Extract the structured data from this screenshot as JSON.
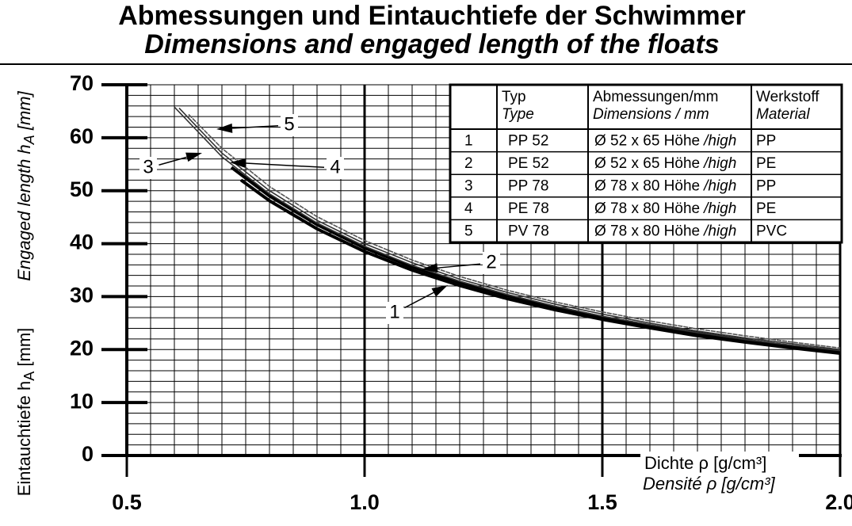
{
  "chart_data": {
    "type": "line",
    "title": "Abmessungen und Eintauchtiefe der Schwimmer",
    "subtitle": "Dimensions and engaged length of the floats",
    "ylabel": [
      {
        "text": "Eintauchtiefe h",
        "sub": "A",
        "tail": " [mm]"
      },
      {
        "text": "Engaged length h",
        "sub": "A",
        "tail": " [mm]"
      }
    ],
    "xlabel": [
      "Dichte ρ [g/cm³]",
      "Densité ρ [g/cm³]"
    ],
    "xlim": [
      0.5,
      2.0
    ],
    "ylim": [
      0,
      70
    ],
    "xticks": [
      0.5,
      {
        "value": 1,
        "label": "1.0"
      },
      1.5,
      {
        "value": 2,
        "label": "2.0"
      }
    ],
    "yticks": [
      0,
      10,
      20,
      30,
      40,
      50,
      60,
      70
    ],
    "minor_xticks": [
      0.5,
      0.55,
      0.6,
      0.65,
      0.7,
      0.75,
      0.8,
      0.85,
      0.9,
      0.95,
      1,
      1.05,
      1.1,
      1.15,
      1.2,
      1.25,
      1.3,
      1.35,
      1.4,
      1.45,
      1.5,
      1.55,
      1.6,
      1.65,
      1.7,
      1.75,
      1.8,
      1.85,
      1.9,
      1.95,
      2
    ],
    "minor_yticks": [
      0,
      2,
      4,
      6,
      8,
      10,
      12,
      14,
      16,
      18,
      20,
      22,
      24,
      26,
      28,
      30,
      32,
      34,
      36,
      38,
      40,
      42,
      44,
      46,
      48,
      50,
      52,
      54,
      56,
      58,
      60,
      62,
      64,
      66,
      68,
      70
    ],
    "grid": true,
    "series": [
      {
        "name": "1",
        "color": "#000000",
        "x": [
          0.74,
          0.8,
          0.9,
          1.0,
          1.1,
          1.2,
          1.3,
          1.4,
          1.5,
          1.6,
          1.7,
          1.8,
          1.9,
          2.0
        ],
        "values": [
          52.0,
          48.1,
          42.8,
          38.5,
          35.0,
          32.1,
          29.6,
          27.5,
          25.7,
          24.1,
          22.6,
          21.4,
          20.3,
          19.3
        ]
      },
      {
        "name": "2",
        "color": "#000000",
        "x": [
          0.72,
          0.8,
          0.9,
          1.0,
          1.1,
          1.2,
          1.3,
          1.4,
          1.5,
          1.6,
          1.7,
          1.8,
          1.9,
          2.0
        ],
        "values": [
          54.4,
          49.0,
          43.6,
          39.2,
          35.6,
          32.7,
          30.2,
          28.0,
          26.1,
          24.5,
          23.1,
          21.8,
          20.6,
          19.6
        ]
      },
      {
        "name": "3",
        "color": "#333333",
        "x": [
          0.6,
          0.7,
          0.8,
          0.9,
          1.0,
          1.1,
          1.2,
          1.3,
          1.4,
          1.5,
          1.6,
          1.7,
          1.8,
          1.9,
          2.0
        ],
        "values": [
          65.8,
          56.4,
          49.4,
          43.9,
          39.5,
          35.9,
          32.9,
          30.4,
          28.2,
          26.3,
          24.7,
          23.2,
          21.9,
          20.8,
          19.8
        ]
      },
      {
        "name": "4",
        "color": "#333333",
        "x": [
          0.61,
          0.7,
          0.8,
          0.9,
          1.0,
          1.1,
          1.2,
          1.3,
          1.4,
          1.5,
          1.6,
          1.7,
          1.8,
          1.9,
          2.0
        ],
        "values": [
          65.6,
          57.1,
          50.0,
          44.4,
          40.0,
          36.4,
          33.3,
          30.8,
          28.6,
          26.7,
          25.0,
          23.5,
          22.2,
          21.1,
          20.0
        ]
      },
      {
        "name": "5",
        "color": "#555555",
        "x": [
          0.63,
          0.7,
          0.8,
          0.9,
          1.0,
          1.1,
          1.2,
          1.3,
          1.4,
          1.5,
          1.6,
          1.7,
          1.8,
          1.9,
          2.0
        ],
        "values": [
          64.4,
          58.0,
          50.8,
          45.1,
          40.6,
          36.9,
          33.8,
          31.2,
          29.0,
          27.1,
          25.4,
          23.9,
          22.6,
          21.4,
          20.3
        ]
      }
    ],
    "table": {
      "header": [
        [
          "Typ",
          "Type"
        ],
        [
          "Abmessungen/mm",
          "Dimensions / mm"
        ],
        [
          "Werkstoff",
          "Material"
        ]
      ],
      "rows": [
        {
          "no": "1",
          "type": "PP 52",
          "dim": "Ø 52 x 65 Höhe",
          "dim_en": "/high",
          "material": "PP"
        },
        {
          "no": "2",
          "type": "PE 52",
          "dim": "Ø 52 x 65 Höhe",
          "dim_en": "/high",
          "material": "PE"
        },
        {
          "no": "3",
          "type": "PP 78",
          "dim": "Ø 78 x 80 Höhe",
          "dim_en": "/high",
          "material": "PP"
        },
        {
          "no": "4",
          "type": "PE 78",
          "dim": "Ø 78 x 80 Höhe",
          "dim_en": "/high",
          "material": "PE"
        },
        {
          "no": "5",
          "type": "PV 78",
          "dim": "Ø 78 x 80 Höhe",
          "dim_en": "/high",
          "material": "PVC"
        }
      ]
    }
  }
}
